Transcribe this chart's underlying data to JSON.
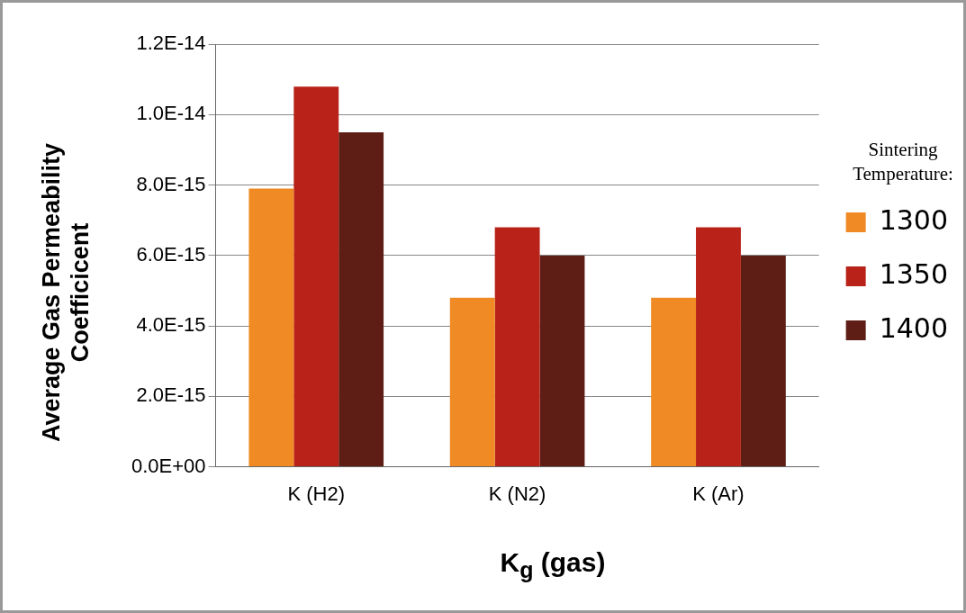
{
  "chart_data": {
    "type": "bar",
    "xlabel": "K$_{g}$ (gas)",
    "ylabel": "Average Gas Permeability Coefficicent",
    "legend_title": "Sintering Temperature:",
    "categories": [
      "K (H2)",
      "K (N2)",
      "K (Ar)"
    ],
    "series": [
      {
        "name": "1300",
        "color": "#f08a24",
        "values": [
          7.9e-15,
          4.8e-15,
          4.8e-15
        ]
      },
      {
        "name": "1350",
        "color": "#b82218",
        "values": [
          1.08e-14,
          6.8e-15,
          6.8e-15
        ]
      },
      {
        "name": "1400",
        "color": "#5e1e16",
        "values": [
          9.5e-15,
          6e-15,
          6e-15
        ]
      }
    ],
    "ylim": [
      0,
      1.2e-14
    ],
    "yticks": [
      {
        "value": 0,
        "label": "0.0E+00"
      },
      {
        "value": 2e-15,
        "label": "2.0E-15"
      },
      {
        "value": 4e-15,
        "label": "4.0E-15"
      },
      {
        "value": 6e-15,
        "label": "6.0E-15"
      },
      {
        "value": 8e-15,
        "label": "8.0E-15"
      },
      {
        "value": 1e-14,
        "label": "1.0E-14"
      },
      {
        "value": 1.2e-14,
        "label": "1.2E-14"
      }
    ],
    "grid": "y",
    "legend": "right"
  }
}
